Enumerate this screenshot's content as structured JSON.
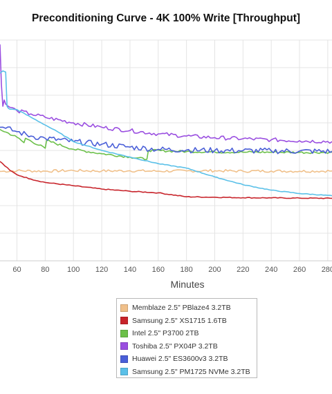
{
  "chart_data": {
    "type": "line",
    "title": "Preconditioning Curve - 4K 100% Write [Throughput]",
    "xlabel": "Minutes",
    "ylabel": "",
    "x_ticks": [
      60,
      80,
      100,
      120,
      140,
      160,
      180,
      200,
      220,
      240,
      260,
      280
    ],
    "xlim": [
      48,
      283
    ],
    "ylim": [
      0,
      100
    ],
    "grid": true,
    "legend_position": "bottom",
    "series": [
      {
        "name": "Memblaze 2.5\" PBlaze4 3.2TB",
        "color": "#f0c08a",
        "x": [
          48,
          60,
          80,
          100,
          120,
          140,
          160,
          180,
          200,
          220,
          240,
          260,
          283
        ],
        "y": [
          40.5,
          40.8,
          40.6,
          40.9,
          40.7,
          40.8,
          40.6,
          40.7,
          40.8,
          40.6,
          40.7,
          40.6,
          40.7
        ]
      },
      {
        "name": "Samsung 2.5\" XS1715 1.6TB",
        "color": "#c8242b",
        "x": [
          48,
          55,
          60,
          70,
          80,
          100,
          120,
          140,
          160,
          180,
          200,
          220,
          240,
          260,
          283
        ],
        "y": [
          45,
          41,
          39,
          37,
          35.5,
          34,
          32.5,
          31.5,
          30.8,
          29,
          28.8,
          28.6,
          28.5,
          28.4,
          28.3
        ]
      },
      {
        "name": "Intel 2.5\" P3700 2TB",
        "color": "#6cc04a",
        "x": [
          48,
          60,
          65,
          66,
          80,
          81,
          100,
          120,
          140,
          152,
          153,
          180,
          200,
          220,
          240,
          260,
          283
        ],
        "y": [
          59.5,
          56,
          53.5,
          55.5,
          51,
          54.5,
          50.5,
          48.5,
          47,
          46,
          50,
          49.5,
          49.3,
          49.2,
          49.2,
          49.1,
          49.1
        ]
      },
      {
        "name": "Toshiba 2.5\" PX04P 3.2TB",
        "color": "#9a4ee0",
        "x": [
          48,
          49,
          50,
          51,
          52,
          55,
          60,
          70,
          80,
          100,
          120,
          140,
          160,
          180,
          200,
          220,
          240,
          260,
          283
        ],
        "y": [
          98,
          80,
          70,
          72.8,
          71,
          69.5,
          68,
          66.5,
          65,
          62.5,
          60.5,
          59,
          57.5,
          56.5,
          55.8,
          55.3,
          54.8,
          54.4,
          54
        ]
      },
      {
        "name": "Huawei 2.5\" ES3600v3 3.2TB",
        "color": "#4a5fd8",
        "x": [
          48,
          52,
          60,
          70,
          80,
          100,
          120,
          140,
          160,
          180,
          200,
          220,
          240,
          260,
          283
        ],
        "y": [
          60.5,
          60,
          58.5,
          56.5,
          55.5,
          54,
          52.8,
          51.5,
          50.5,
          50.2,
          50,
          49.9,
          49.8,
          49.7,
          49.6
        ]
      },
      {
        "name": "Samsung 2.5\" PM1725 NVMe 3.2TB",
        "color": "#5ac0e8",
        "x": [
          48,
          50,
          52,
          53,
          54,
          55,
          60,
          70,
          80,
          90,
          100,
          120,
          140,
          160,
          180,
          200,
          220,
          240,
          260,
          283
        ],
        "y": [
          85,
          86,
          85.5,
          70,
          69,
          68.7,
          68.5,
          65,
          61.5,
          58,
          54,
          50,
          47,
          44,
          42,
          38,
          34.5,
          32,
          30.5,
          29.5
        ]
      }
    ]
  },
  "legend": {
    "items": [
      {
        "label": "Memblaze 2.5\" PBlaze4 3.2TB",
        "color": "#f0c08a"
      },
      {
        "label": "Samsung 2.5\" XS1715 1.6TB",
        "color": "#c8242b"
      },
      {
        "label": "Intel 2.5\" P3700 2TB",
        "color": "#6cc04a"
      },
      {
        "label": "Toshiba 2.5\" PX04P 3.2TB",
        "color": "#9a4ee0"
      },
      {
        "label": "Huawei 2.5\" ES3600v3 3.2TB",
        "color": "#4a5fd8"
      },
      {
        "label": "Samsung 2.5\" PM1725 NVMe 3.2TB",
        "color": "#5ac0e8"
      }
    ]
  }
}
